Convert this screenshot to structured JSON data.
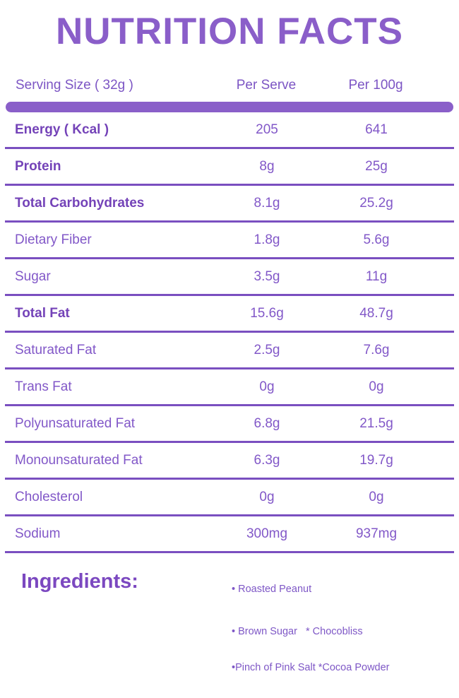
{
  "page": {
    "title": "NUTRITION FACTS",
    "colors": {
      "title": "#8a5ec9",
      "accent_bar": "#8a5fc9",
      "divider": "#7a4fc0",
      "bold_text": "#7443b8",
      "regular_text": "#8258c8",
      "background": "#ffffff"
    }
  },
  "table": {
    "columns": {
      "label": "Serving Size ( 32g )",
      "per_serve": "Per Serve",
      "per_100g": "Per 100g"
    },
    "rows": [
      {
        "label": "Energy ( Kcal )",
        "per_serve": "205",
        "per_100g": "641",
        "bold": true
      },
      {
        "label": "Protein",
        "per_serve": "8g",
        "per_100g": "25g",
        "bold": true
      },
      {
        "label": "Total Carbohydrates",
        "per_serve": "8.1g",
        "per_100g": "25.2g",
        "bold": true
      },
      {
        "label": "Dietary Fiber",
        "per_serve": "1.8g",
        "per_100g": "5.6g",
        "bold": false
      },
      {
        "label": "Sugar",
        "per_serve": "3.5g",
        "per_100g": "11g",
        "bold": false
      },
      {
        "label": "Total Fat",
        "per_serve": "15.6g",
        "per_100g": "48.7g",
        "bold": true
      },
      {
        "label": "Saturated Fat",
        "per_serve": "2.5g",
        "per_100g": "7.6g",
        "bold": false
      },
      {
        "label": "Trans Fat",
        "per_serve": "0g",
        "per_100g": "0g",
        "bold": false
      },
      {
        "label": "Polyunsaturated Fat",
        "per_serve": "6.8g",
        "per_100g": "21.5g",
        "bold": false
      },
      {
        "label": "Monounsaturated Fat",
        "per_serve": "6.3g",
        "per_100g": "19.7g",
        "bold": false
      },
      {
        "label": "Cholesterol",
        "per_serve": "0g",
        "per_100g": "0g",
        "bold": false
      },
      {
        "label": "Sodium",
        "per_serve": "300mg",
        "per_100g": "937mg",
        "bold": false
      }
    ]
  },
  "ingredients": {
    "heading": "Ingredients:",
    "lines": [
      "• Roasted Peanut",
      "• Brown Sugar   * Chocobliss",
      "•Pinch of Pink Salt *Cocoa Powder"
    ]
  }
}
